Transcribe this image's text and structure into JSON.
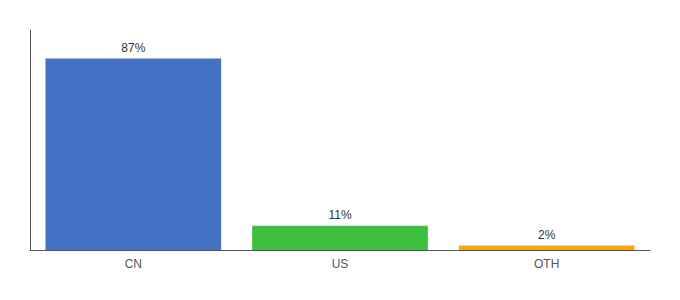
{
  "chart_data": {
    "type": "bar",
    "categories": [
      "CN",
      "US",
      "OTH"
    ],
    "values": [
      87,
      11,
      2
    ],
    "value_labels": [
      "87%",
      "11%",
      "2%"
    ],
    "colors": [
      "#4472C4",
      "#3DBF3D",
      "#FFA500"
    ],
    "ylim": [
      0,
      100
    ],
    "data_labels": true,
    "tick_labels": "x",
    "grid": false
  }
}
